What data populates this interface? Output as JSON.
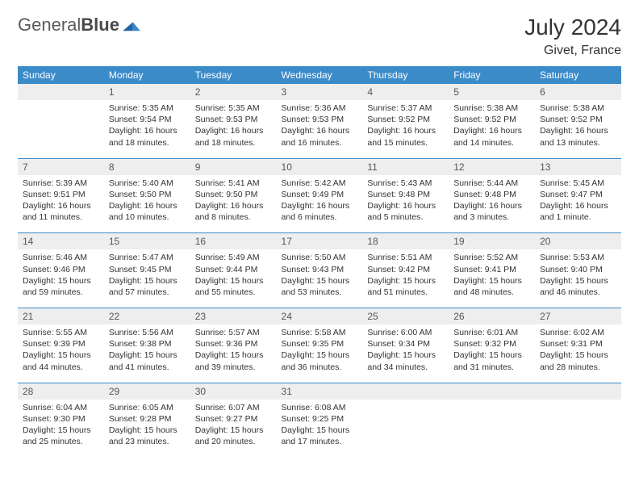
{
  "brand": {
    "part1": "General",
    "part2": "Blue"
  },
  "title": "July 2024",
  "location": "Givet, France",
  "weekdays": [
    "Sunday",
    "Monday",
    "Tuesday",
    "Wednesday",
    "Thursday",
    "Friday",
    "Saturday"
  ],
  "header_bg": "#3b8bc9",
  "daynum_bg": "#eeeeee",
  "sep_color": "#3b8bc9",
  "weeks": [
    {
      "nums": [
        "",
        "1",
        "2",
        "3",
        "4",
        "5",
        "6"
      ],
      "details": [
        "",
        "Sunrise: 5:35 AM\nSunset: 9:54 PM\nDaylight: 16 hours and 18 minutes.",
        "Sunrise: 5:35 AM\nSunset: 9:53 PM\nDaylight: 16 hours and 18 minutes.",
        "Sunrise: 5:36 AM\nSunset: 9:53 PM\nDaylight: 16 hours and 16 minutes.",
        "Sunrise: 5:37 AM\nSunset: 9:52 PM\nDaylight: 16 hours and 15 minutes.",
        "Sunrise: 5:38 AM\nSunset: 9:52 PM\nDaylight: 16 hours and 14 minutes.",
        "Sunrise: 5:38 AM\nSunset: 9:52 PM\nDaylight: 16 hours and 13 minutes."
      ]
    },
    {
      "nums": [
        "7",
        "8",
        "9",
        "10",
        "11",
        "12",
        "13"
      ],
      "details": [
        "Sunrise: 5:39 AM\nSunset: 9:51 PM\nDaylight: 16 hours and 11 minutes.",
        "Sunrise: 5:40 AM\nSunset: 9:50 PM\nDaylight: 16 hours and 10 minutes.",
        "Sunrise: 5:41 AM\nSunset: 9:50 PM\nDaylight: 16 hours and 8 minutes.",
        "Sunrise: 5:42 AM\nSunset: 9:49 PM\nDaylight: 16 hours and 6 minutes.",
        "Sunrise: 5:43 AM\nSunset: 9:48 PM\nDaylight: 16 hours and 5 minutes.",
        "Sunrise: 5:44 AM\nSunset: 9:48 PM\nDaylight: 16 hours and 3 minutes.",
        "Sunrise: 5:45 AM\nSunset: 9:47 PM\nDaylight: 16 hours and 1 minute."
      ]
    },
    {
      "nums": [
        "14",
        "15",
        "16",
        "17",
        "18",
        "19",
        "20"
      ],
      "details": [
        "Sunrise: 5:46 AM\nSunset: 9:46 PM\nDaylight: 15 hours and 59 minutes.",
        "Sunrise: 5:47 AM\nSunset: 9:45 PM\nDaylight: 15 hours and 57 minutes.",
        "Sunrise: 5:49 AM\nSunset: 9:44 PM\nDaylight: 15 hours and 55 minutes.",
        "Sunrise: 5:50 AM\nSunset: 9:43 PM\nDaylight: 15 hours and 53 minutes.",
        "Sunrise: 5:51 AM\nSunset: 9:42 PM\nDaylight: 15 hours and 51 minutes.",
        "Sunrise: 5:52 AM\nSunset: 9:41 PM\nDaylight: 15 hours and 48 minutes.",
        "Sunrise: 5:53 AM\nSunset: 9:40 PM\nDaylight: 15 hours and 46 minutes."
      ]
    },
    {
      "nums": [
        "21",
        "22",
        "23",
        "24",
        "25",
        "26",
        "27"
      ],
      "details": [
        "Sunrise: 5:55 AM\nSunset: 9:39 PM\nDaylight: 15 hours and 44 minutes.",
        "Sunrise: 5:56 AM\nSunset: 9:38 PM\nDaylight: 15 hours and 41 minutes.",
        "Sunrise: 5:57 AM\nSunset: 9:36 PM\nDaylight: 15 hours and 39 minutes.",
        "Sunrise: 5:58 AM\nSunset: 9:35 PM\nDaylight: 15 hours and 36 minutes.",
        "Sunrise: 6:00 AM\nSunset: 9:34 PM\nDaylight: 15 hours and 34 minutes.",
        "Sunrise: 6:01 AM\nSunset: 9:32 PM\nDaylight: 15 hours and 31 minutes.",
        "Sunrise: 6:02 AM\nSunset: 9:31 PM\nDaylight: 15 hours and 28 minutes."
      ]
    },
    {
      "nums": [
        "28",
        "29",
        "30",
        "31",
        "",
        "",
        ""
      ],
      "details": [
        "Sunrise: 6:04 AM\nSunset: 9:30 PM\nDaylight: 15 hours and 25 minutes.",
        "Sunrise: 6:05 AM\nSunset: 9:28 PM\nDaylight: 15 hours and 23 minutes.",
        "Sunrise: 6:07 AM\nSunset: 9:27 PM\nDaylight: 15 hours and 20 minutes.",
        "Sunrise: 6:08 AM\nSunset: 9:25 PM\nDaylight: 15 hours and 17 minutes.",
        "",
        "",
        ""
      ]
    }
  ]
}
